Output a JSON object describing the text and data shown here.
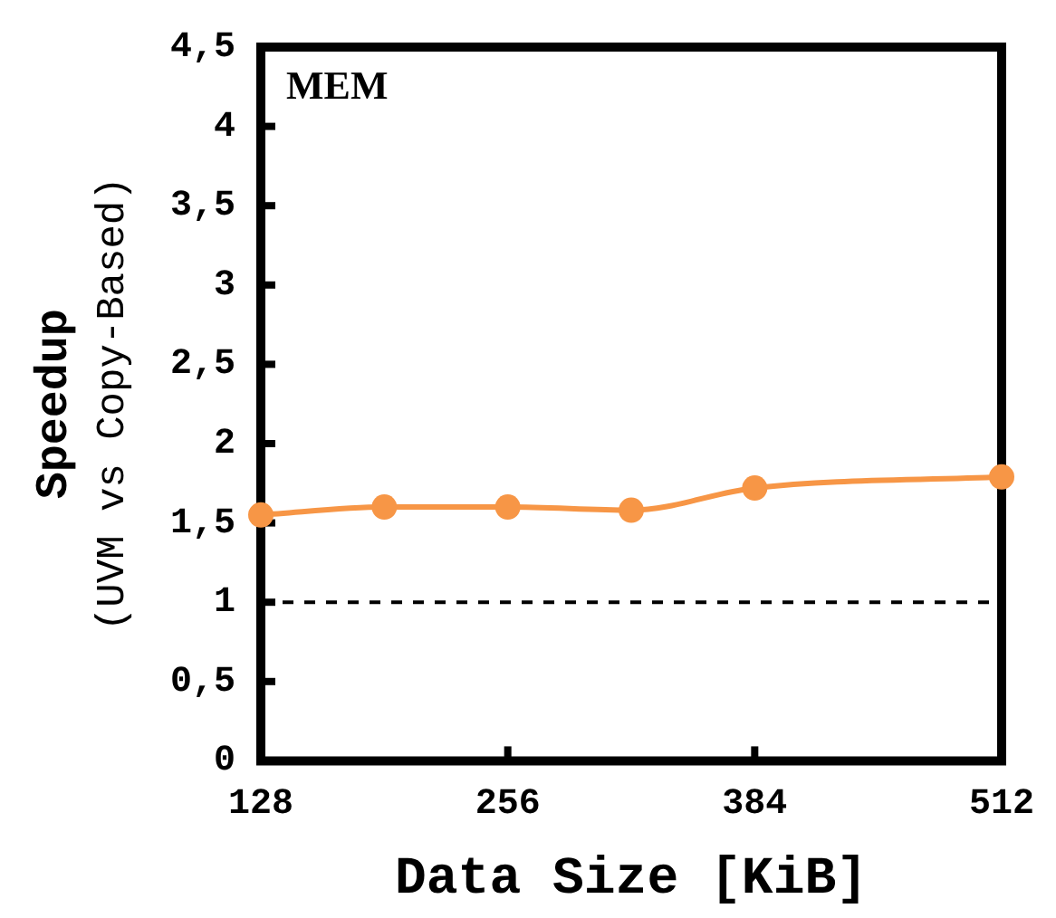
{
  "chart_data": {
    "type": "line",
    "xlabel": "Data Size [KiB]",
    "ylabel": "Speedup\n(UVM vs Copy-Based)",
    "annotations": [
      "MEM"
    ],
    "x": [
      128,
      192,
      256,
      320,
      384,
      512
    ],
    "series": [
      {
        "color": "#f79646",
        "values": [
          1.55,
          1.6,
          1.6,
          1.58,
          1.72,
          1.79
        ]
      }
    ],
    "xlim": [
      128,
      512
    ],
    "xticks": [
      128,
      256,
      384,
      512
    ],
    "ylim": [
      0,
      4.5
    ],
    "yticks": [
      0,
      {
        "value": 0.5,
        "label": "0,5"
      },
      1,
      {
        "value": 1.5,
        "label": "1,5"
      },
      2,
      {
        "value": 2.5,
        "label": "2,5"
      },
      3,
      {
        "value": 3.5,
        "label": "3,5"
      },
      4,
      {
        "value": 4.5,
        "label": "4,5"
      }
    ],
    "ref_lines": [
      {
        "axis": "y",
        "value": 1,
        "line_style": "dashed",
        "color": "#000000"
      }
    ],
    "grid": false,
    "legend": false,
    "marker": "circle",
    "line_style": "solid"
  }
}
